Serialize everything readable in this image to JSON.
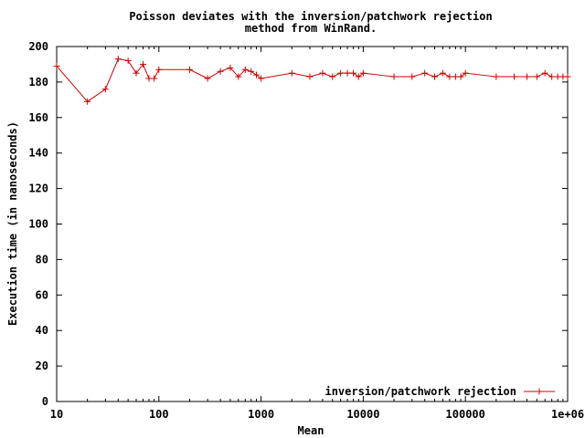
{
  "chart_data": {
    "type": "line",
    "title_lines": [
      "Poisson deviates with the inversion/patchwork rejection",
      "method from WinRand."
    ],
    "xlabel": "Mean",
    "ylabel": "Execution time (in nanoseconds)",
    "x_scale": "log",
    "xlim": [
      10,
      1000000
    ],
    "ylim": [
      0,
      200
    ],
    "x_ticks": [
      {
        "value": 10,
        "label": "10"
      },
      {
        "value": 100,
        "label": "100"
      },
      {
        "value": 1000,
        "label": "1000"
      },
      {
        "value": 10000,
        "label": "10000"
      },
      {
        "value": 100000,
        "label": "100000"
      },
      {
        "value": 1000000,
        "label": "1e+06"
      }
    ],
    "y_ticks": [
      {
        "value": 0,
        "label": "0"
      },
      {
        "value": 20,
        "label": "20"
      },
      {
        "value": 40,
        "label": "40"
      },
      {
        "value": 60,
        "label": "60"
      },
      {
        "value": 80,
        "label": "80"
      },
      {
        "value": 100,
        "label": "100"
      },
      {
        "value": 120,
        "label": "120"
      },
      {
        "value": 140,
        "label": "140"
      },
      {
        "value": 160,
        "label": "160"
      },
      {
        "value": 180,
        "label": "180"
      },
      {
        "value": 200,
        "label": "200"
      }
    ],
    "grid": false,
    "legend_position": "bottom-right",
    "series": [
      {
        "name": "inversion/patchwork rejection",
        "color": "#cc0000",
        "marker": "plus",
        "x": [
          10,
          20,
          30,
          40,
          50,
          60,
          70,
          80,
          90,
          100,
          200,
          300,
          400,
          500,
          600,
          700,
          800,
          900,
          1000,
          2000,
          3000,
          4000,
          5000,
          6000,
          7000,
          8000,
          9000,
          10000,
          20000,
          30000,
          40000,
          50000,
          60000,
          70000,
          80000,
          90000,
          100000,
          200000,
          300000,
          400000,
          500000,
          600000,
          700000,
          800000,
          900000,
          1000000
        ],
        "y": [
          189,
          169,
          176,
          193,
          192,
          185,
          190,
          182,
          182,
          187,
          187,
          182,
          186,
          188,
          183,
          187,
          186,
          184,
          182,
          185,
          183,
          185,
          183,
          185,
          185,
          185,
          183,
          185,
          183,
          183,
          185,
          183,
          185,
          183,
          183,
          183,
          185,
          183,
          183,
          183,
          183,
          185,
          183,
          183,
          183,
          183
        ]
      }
    ]
  }
}
